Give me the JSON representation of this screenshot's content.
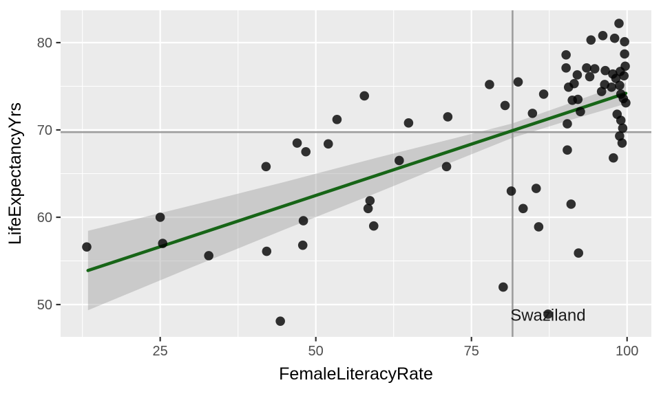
{
  "chart_data": {
    "type": "scatter",
    "title": "",
    "xlabel": "FemaleLiteracyRate",
    "ylabel": "LifeExpectancyYrs",
    "xlim": [
      9.0,
      103.9
    ],
    "ylim": [
      46.3,
      83.7
    ],
    "x_major_ticks": [
      25,
      50,
      75,
      100
    ],
    "y_major_ticks": [
      50,
      60,
      70,
      80
    ],
    "x_minor_gridlines": [
      12.5,
      37.5,
      62.5,
      87.5
    ],
    "y_minor_gridlines": [
      55,
      65,
      75
    ],
    "grid": "major-and-minor-white-on-gray",
    "legend": "none",
    "points": [
      [
        13.2,
        56.6
      ],
      [
        25.0,
        60.0
      ],
      [
        25.4,
        57.0
      ],
      [
        32.8,
        55.6
      ],
      [
        42.0,
        65.8
      ],
      [
        42.1,
        56.1
      ],
      [
        44.3,
        48.1
      ],
      [
        47.0,
        68.5
      ],
      [
        48.4,
        67.5
      ],
      [
        47.9,
        56.8
      ],
      [
        48.0,
        59.6
      ],
      [
        52.0,
        68.4
      ],
      [
        53.4,
        71.2
      ],
      [
        57.8,
        73.9
      ],
      [
        58.4,
        61.0
      ],
      [
        58.7,
        61.9
      ],
      [
        59.3,
        59.0
      ],
      [
        63.4,
        66.5
      ],
      [
        64.9,
        70.8
      ],
      [
        71.0,
        65.8
      ],
      [
        71.2,
        71.5
      ],
      [
        77.9,
        75.2
      ],
      [
        80.1,
        52.0
      ],
      [
        80.4,
        72.8
      ],
      [
        81.4,
        63.0
      ],
      [
        82.5,
        75.5
      ],
      [
        83.3,
        61.0
      ],
      [
        84.8,
        71.9
      ],
      [
        85.4,
        63.3
      ],
      [
        85.8,
        58.9
      ],
      [
        86.6,
        74.1
      ],
      [
        87.3,
        48.9
      ],
      [
        90.2,
        78.6
      ],
      [
        90.2,
        77.1
      ],
      [
        90.4,
        70.7
      ],
      [
        90.4,
        67.7
      ],
      [
        90.6,
        74.9
      ],
      [
        91.0,
        61.5
      ],
      [
        91.2,
        73.4
      ],
      [
        91.5,
        75.3
      ],
      [
        92.0,
        76.3
      ],
      [
        92.1,
        73.5
      ],
      [
        92.2,
        55.9
      ],
      [
        92.5,
        72.1
      ],
      [
        93.5,
        77.1
      ],
      [
        94.2,
        80.3
      ],
      [
        94.0,
        76.1
      ],
      [
        94.8,
        77.0
      ],
      [
        95.9,
        74.4
      ],
      [
        96.1,
        80.8
      ],
      [
        96.4,
        75.2
      ],
      [
        96.5,
        76.8
      ],
      [
        97.5,
        74.9
      ],
      [
        97.7,
        76.4
      ],
      [
        97.8,
        66.8
      ],
      [
        98.0,
        80.5
      ],
      [
        98.2,
        75.9
      ],
      [
        98.4,
        71.8
      ],
      [
        98.7,
        82.2
      ],
      [
        98.8,
        75.1
      ],
      [
        98.8,
        69.3
      ],
      [
        98.9,
        76.7
      ],
      [
        99.0,
        74.1
      ],
      [
        99.0,
        71.1
      ],
      [
        99.2,
        68.5
      ],
      [
        99.3,
        70.2
      ],
      [
        99.4,
        73.6
      ],
      [
        99.5,
        76.2
      ],
      [
        99.6,
        80.1
      ],
      [
        99.6,
        78.7
      ],
      [
        99.7,
        77.3
      ],
      [
        99.8,
        73.1
      ]
    ],
    "trend_line": {
      "type": "linear",
      "x_start": 13.4,
      "y_start": 53.9,
      "x_end": 99.8,
      "y_end": 74.2
    },
    "confidence_band": {
      "x": [
        13.4,
        30.0,
        45.0,
        60.0,
        72.0,
        81.6,
        90.0,
        99.8
      ],
      "upper": [
        58.45,
        61.35,
        64.05,
        66.85,
        69.0,
        70.75,
        72.85,
        75.4
      ],
      "lower": [
        49.35,
        54.25,
        58.6,
        62.85,
        66.35,
        69.1,
        70.95,
        73.0
      ]
    },
    "reference_lines": {
      "vline_x": 81.6,
      "hline_y": 69.75
    },
    "annotation": {
      "text": "Swaziland",
      "x": 87.3,
      "y": 48.8
    },
    "colors": {
      "panel_bg": "#EBEBEB",
      "grid": "#FFFFFF",
      "point": "#000000",
      "point_opacity": 0.8,
      "trend": "#176517",
      "band": "#999999",
      "band_opacity": 0.4,
      "reference": "#9E9E9E",
      "tick_mark": "#333333",
      "tick_label": "#4D4D4D",
      "axis_title": "#000000",
      "annotation_text": "#1A1A1A"
    }
  }
}
